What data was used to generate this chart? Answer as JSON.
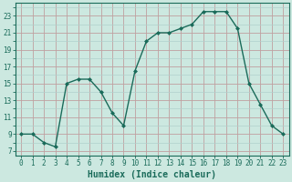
{
  "x": [
    0,
    1,
    2,
    3,
    4,
    5,
    6,
    7,
    8,
    9,
    10,
    11,
    12,
    13,
    14,
    15,
    16,
    17,
    18,
    19,
    20,
    21,
    22,
    23
  ],
  "y": [
    9,
    9,
    8,
    7.5,
    15,
    15.5,
    15.5,
    14,
    11.5,
    10,
    16.5,
    20,
    21,
    21,
    21.5,
    22,
    23.5,
    23.5,
    23.5,
    21.5,
    15,
    12.5,
    10,
    9
  ],
  "line_color": "#1a6b5a",
  "marker_color": "#1a6b5a",
  "bg_color": "#cce8e0",
  "grid_major_color": "#c0a0a0",
  "grid_minor_color": "#b0d0cc",
  "axis_color": "#1a6b5a",
  "xlabel": "Humidex (Indice chaleur)",
  "xlim": [
    -0.5,
    23.5
  ],
  "ylim": [
    6.5,
    24.5
  ],
  "yticks": [
    7,
    9,
    11,
    13,
    15,
    17,
    19,
    21,
    23
  ],
  "xticks": [
    0,
    1,
    2,
    3,
    4,
    5,
    6,
    7,
    8,
    9,
    10,
    11,
    12,
    13,
    14,
    15,
    16,
    17,
    18,
    19,
    20,
    21,
    22,
    23
  ],
  "tick_fontsize": 5.5,
  "xlabel_fontsize": 7.0,
  "marker_size": 2.0,
  "linewidth": 1.0
}
